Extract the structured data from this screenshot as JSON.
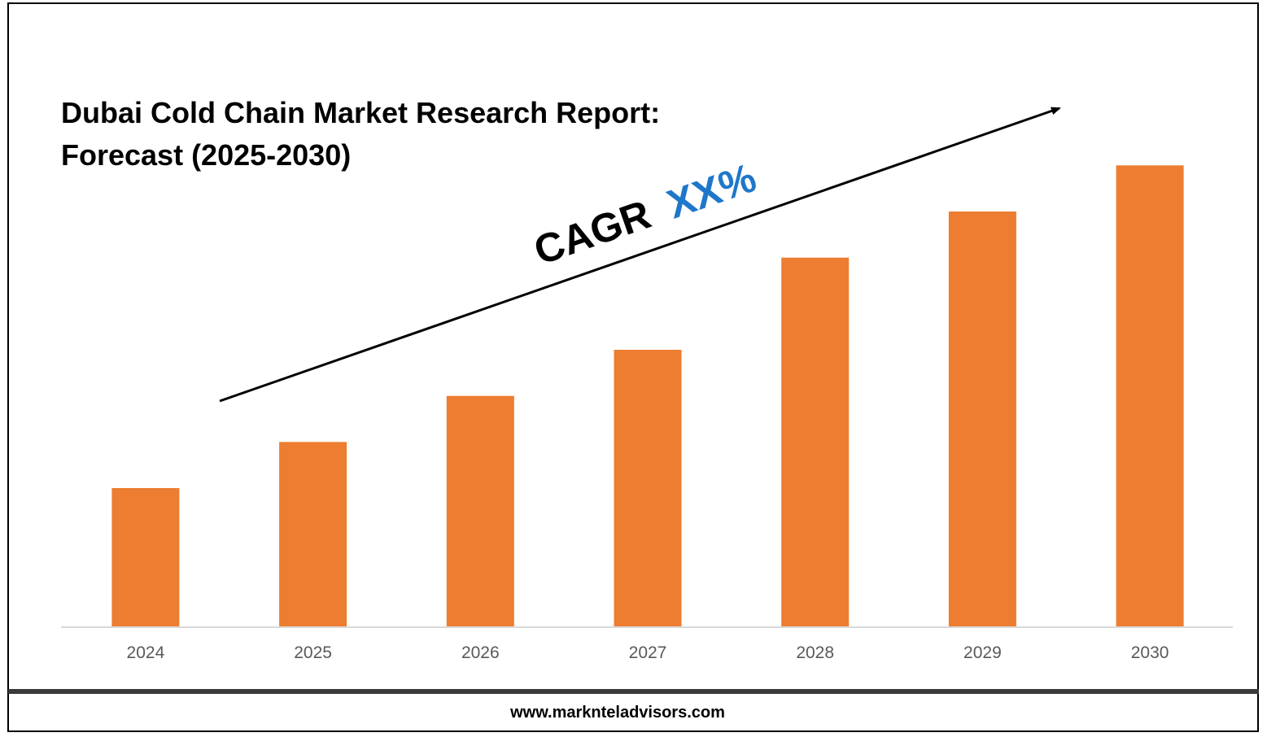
{
  "chart_data": {
    "type": "bar",
    "title": [
      "Dubai Cold Chain Market Research Report:",
      "Forecast (2025-2030)"
    ],
    "categories": [
      "2024",
      "2025",
      "2026",
      "2027",
      "2028",
      "2029",
      "2030"
    ],
    "values": [
      3,
      4,
      5,
      6,
      8,
      9,
      10
    ],
    "ylim": [
      0,
      10.5
    ],
    "xlabel": "",
    "ylabel": "",
    "grid": false,
    "legend": "none",
    "annotation": {
      "prefix": "CAGR",
      "value": "XX%",
      "prefix_color": "#000000",
      "value_color": "#1f77c9"
    }
  },
  "colors": {
    "bar": "#ed7d31",
    "axis": "#d9d9d9",
    "trend_arrow": "#000000"
  },
  "footer": {
    "website": "www.marknteladvisors.com"
  }
}
